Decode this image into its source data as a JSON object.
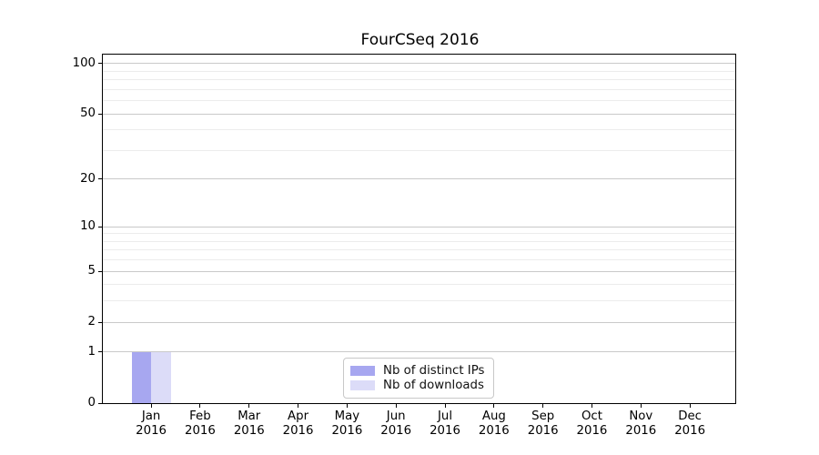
{
  "title": "FourCSeq 2016",
  "chart_data": {
    "type": "bar",
    "title": "FourCSeq 2016",
    "categories": [
      {
        "month": "Jan",
        "year": "2016"
      },
      {
        "month": "Feb",
        "year": "2016"
      },
      {
        "month": "Mar",
        "year": "2016"
      },
      {
        "month": "Apr",
        "year": "2016"
      },
      {
        "month": "May",
        "year": "2016"
      },
      {
        "month": "Jun",
        "year": "2016"
      },
      {
        "month": "Jul",
        "year": "2016"
      },
      {
        "month": "Aug",
        "year": "2016"
      },
      {
        "month": "Sep",
        "year": "2016"
      },
      {
        "month": "Oct",
        "year": "2016"
      },
      {
        "month": "Nov",
        "year": "2016"
      },
      {
        "month": "Dec",
        "year": "2016"
      }
    ],
    "series": [
      {
        "name": "Nb of distinct IPs",
        "color": "#a7a7f0",
        "values": [
          1,
          0,
          0,
          0,
          0,
          0,
          0,
          0,
          0,
          0,
          0,
          0
        ]
      },
      {
        "name": "Nb of downloads",
        "color": "#dcdcf8",
        "values": [
          1,
          0,
          0,
          0,
          0,
          0,
          0,
          0,
          0,
          0,
          0,
          0
        ]
      }
    ],
    "y_axis": {
      "scale": "log1p",
      "major_ticks": [
        0,
        1,
        2,
        5,
        10,
        20,
        50,
        100
      ],
      "minor_gridlines": [
        3,
        4,
        6,
        7,
        8,
        9,
        30,
        40,
        60,
        70,
        80,
        90
      ],
      "range": [
        0,
        114
      ]
    },
    "legend_position": "lower center",
    "grid": true,
    "colors": {
      "major_grid": "#c9c9c9",
      "minor_grid": "#ececec",
      "spine": "#000000",
      "legend_border": "#c8c8c8"
    }
  }
}
